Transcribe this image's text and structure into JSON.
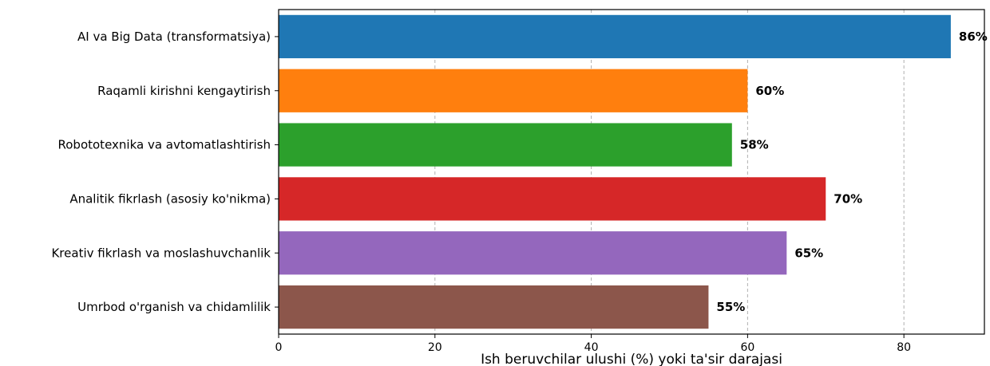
{
  "chart_data": {
    "type": "bar",
    "orientation": "horizontal",
    "categories": [
      "AI va Big Data (transformatsiya)",
      "Raqamli kirishni kengaytirish",
      "Robototexnika va avtomatlashtirish",
      "Analitik fikrlash (asosiy ko'nikma)",
      "Kreativ fikrlash va moslashuvchanlik",
      "Umrbod o'rganish va chidamlilik"
    ],
    "values": [
      86,
      60,
      58,
      70,
      65,
      55
    ],
    "value_labels": [
      "86%",
      "60%",
      "58%",
      "70%",
      "65%",
      "55%"
    ],
    "colors": [
      "#1f77b4",
      "#ff7f0e",
      "#2ca02c",
      "#d62728",
      "#9467bd",
      "#8c564b"
    ],
    "xlabel": "Ish beruvchilar ulushi (%) yoki ta'sir darajasi",
    "xlim": [
      0,
      90.3
    ],
    "xticks": [
      0,
      20,
      40,
      60,
      80
    ],
    "xtick_labels": [
      "0",
      "20",
      "40",
      "60",
      "80"
    ],
    "grid": "x-axis dashed"
  }
}
